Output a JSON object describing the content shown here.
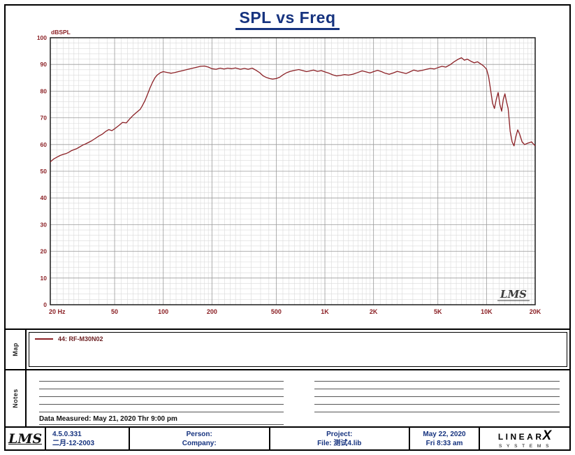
{
  "title": "SPL vs Freq",
  "chart_data": {
    "type": "line",
    "title": "SPL vs Freq",
    "ylabel": "dBSPL",
    "xlabel": "",
    "x_scale": "log",
    "xlim": [
      20,
      20000
    ],
    "ylim": [
      0,
      100
    ],
    "y_tick_step": 10,
    "grid": true,
    "watermark": "LMS",
    "x_ticks": [
      {
        "value": 20,
        "label": "20 Hz"
      },
      {
        "value": 50,
        "label": "50"
      },
      {
        "value": 100,
        "label": "100"
      },
      {
        "value": 200,
        "label": "200"
      },
      {
        "value": 500,
        "label": "500"
      },
      {
        "value": 1000,
        "label": "1K"
      },
      {
        "value": 2000,
        "label": "2K"
      },
      {
        "value": 5000,
        "label": "5K"
      },
      {
        "value": 10000,
        "label": "10K"
      },
      {
        "value": 20000,
        "label": "20K"
      }
    ],
    "series": [
      {
        "name": "44: RF-M30N02",
        "color": "#8b2025",
        "points": [
          [
            20,
            53.5
          ],
          [
            21,
            54.6
          ],
          [
            22,
            55.3
          ],
          [
            23,
            55.9
          ],
          [
            24,
            56.3
          ],
          [
            25,
            56.6
          ],
          [
            26,
            57.1
          ],
          [
            27,
            57.7
          ],
          [
            28,
            58.1
          ],
          [
            29,
            58.4
          ],
          [
            30,
            58.9
          ],
          [
            31,
            59.4
          ],
          [
            32,
            59.9
          ],
          [
            33,
            60.2
          ],
          [
            34,
            60.6
          ],
          [
            35,
            61.0
          ],
          [
            36,
            61.4
          ],
          [
            38,
            62.3
          ],
          [
            40,
            63.2
          ],
          [
            42,
            63.9
          ],
          [
            44,
            64.9
          ],
          [
            46,
            65.6
          ],
          [
            48,
            65.2
          ],
          [
            50,
            65.9
          ],
          [
            53,
            67.1
          ],
          [
            56,
            68.3
          ],
          [
            59,
            68.1
          ],
          [
            62,
            69.6
          ],
          [
            65,
            70.9
          ],
          [
            68,
            71.9
          ],
          [
            70,
            72.6
          ],
          [
            72,
            73.2
          ],
          [
            74,
            74.4
          ],
          [
            77,
            76.4
          ],
          [
            80,
            78.9
          ],
          [
            83,
            81.4
          ],
          [
            86,
            83.4
          ],
          [
            89,
            85.1
          ],
          [
            92,
            86.1
          ],
          [
            96,
            86.9
          ],
          [
            100,
            87.3
          ],
          [
            106,
            87.0
          ],
          [
            112,
            86.7
          ],
          [
            118,
            87.0
          ],
          [
            124,
            87.3
          ],
          [
            132,
            87.7
          ],
          [
            140,
            88.1
          ],
          [
            150,
            88.5
          ],
          [
            160,
            88.9
          ],
          [
            170,
            89.3
          ],
          [
            180,
            89.4
          ],
          [
            190,
            89.0
          ],
          [
            200,
            88.4
          ],
          [
            212,
            88.2
          ],
          [
            225,
            88.6
          ],
          [
            238,
            88.3
          ],
          [
            250,
            88.6
          ],
          [
            265,
            88.4
          ],
          [
            280,
            88.7
          ],
          [
            300,
            88.2
          ],
          [
            318,
            88.5
          ],
          [
            335,
            88.2
          ],
          [
            355,
            88.6
          ],
          [
            375,
            87.8
          ],
          [
            395,
            86.9
          ],
          [
            415,
            85.7
          ],
          [
            435,
            85.1
          ],
          [
            455,
            84.7
          ],
          [
            475,
            84.5
          ],
          [
            500,
            84.7
          ],
          [
            525,
            85.2
          ],
          [
            550,
            86.1
          ],
          [
            580,
            86.9
          ],
          [
            610,
            87.4
          ],
          [
            650,
            87.8
          ],
          [
            690,
            88.1
          ],
          [
            730,
            87.7
          ],
          [
            770,
            87.3
          ],
          [
            810,
            87.6
          ],
          [
            850,
            87.9
          ],
          [
            900,
            87.4
          ],
          [
            950,
            87.7
          ],
          [
            1000,
            87.2
          ],
          [
            1060,
            86.7
          ],
          [
            1120,
            86.1
          ],
          [
            1180,
            85.7
          ],
          [
            1250,
            85.9
          ],
          [
            1320,
            86.2
          ],
          [
            1400,
            86.0
          ],
          [
            1500,
            86.4
          ],
          [
            1600,
            87.0
          ],
          [
            1700,
            87.6
          ],
          [
            1800,
            87.2
          ],
          [
            1900,
            86.8
          ],
          [
            2000,
            87.3
          ],
          [
            2120,
            87.8
          ],
          [
            2240,
            87.3
          ],
          [
            2360,
            86.7
          ],
          [
            2500,
            86.3
          ],
          [
            2650,
            86.8
          ],
          [
            2800,
            87.4
          ],
          [
            3000,
            87.0
          ],
          [
            3180,
            86.6
          ],
          [
            3350,
            87.2
          ],
          [
            3550,
            87.9
          ],
          [
            3750,
            87.5
          ],
          [
            4000,
            87.8
          ],
          [
            4250,
            88.2
          ],
          [
            4500,
            88.5
          ],
          [
            4750,
            88.3
          ],
          [
            5000,
            88.8
          ],
          [
            5300,
            89.3
          ],
          [
            5600,
            89.0
          ],
          [
            6000,
            90.0
          ],
          [
            6300,
            91.0
          ],
          [
            6700,
            92.0
          ],
          [
            7000,
            92.5
          ],
          [
            7300,
            91.6
          ],
          [
            7600,
            92.0
          ],
          [
            8000,
            91.2
          ],
          [
            8400,
            90.6
          ],
          [
            8800,
            91.0
          ],
          [
            9200,
            90.2
          ],
          [
            9600,
            89.4
          ],
          [
            10000,
            88.2
          ],
          [
            10300,
            85.5
          ],
          [
            10600,
            80.5
          ],
          [
            10900,
            75.5
          ],
          [
            11200,
            73.5
          ],
          [
            11500,
            77.0
          ],
          [
            11800,
            79.5
          ],
          [
            12100,
            75.0
          ],
          [
            12400,
            72.5
          ],
          [
            12700,
            77.0
          ],
          [
            13000,
            79.0
          ],
          [
            13300,
            76.0
          ],
          [
            13600,
            73.5
          ],
          [
            14000,
            65.0
          ],
          [
            14400,
            61.0
          ],
          [
            14800,
            59.5
          ],
          [
            15200,
            63.0
          ],
          [
            15600,
            65.5
          ],
          [
            16000,
            64.0
          ],
          [
            16600,
            61.0
          ],
          [
            17200,
            60.0
          ],
          [
            18000,
            60.5
          ],
          [
            19000,
            61.0
          ],
          [
            20000,
            59.5
          ]
        ]
      }
    ]
  },
  "map": {
    "label": "Map",
    "legend_name": "44: RF-M30N02",
    "legend_color": "#8b2025"
  },
  "notes": {
    "label": "Notes",
    "data_measured": "Data Measured: May 21, 2020  Thr  9:00 pm"
  },
  "footer": {
    "logo": "LMS",
    "version": "4.5.0.331",
    "version_date": "二月-12-2003",
    "person_label": "Person:",
    "company_label": "Company:",
    "project_label": "Project:",
    "file_label": "File: 测试4.lib",
    "measure_date": "May 22, 2020",
    "measure_time": "Fri  8:33 am",
    "brand_word": "LINEAR",
    "brand_x": "X",
    "brand_bottom": "S Y S T E M S"
  }
}
